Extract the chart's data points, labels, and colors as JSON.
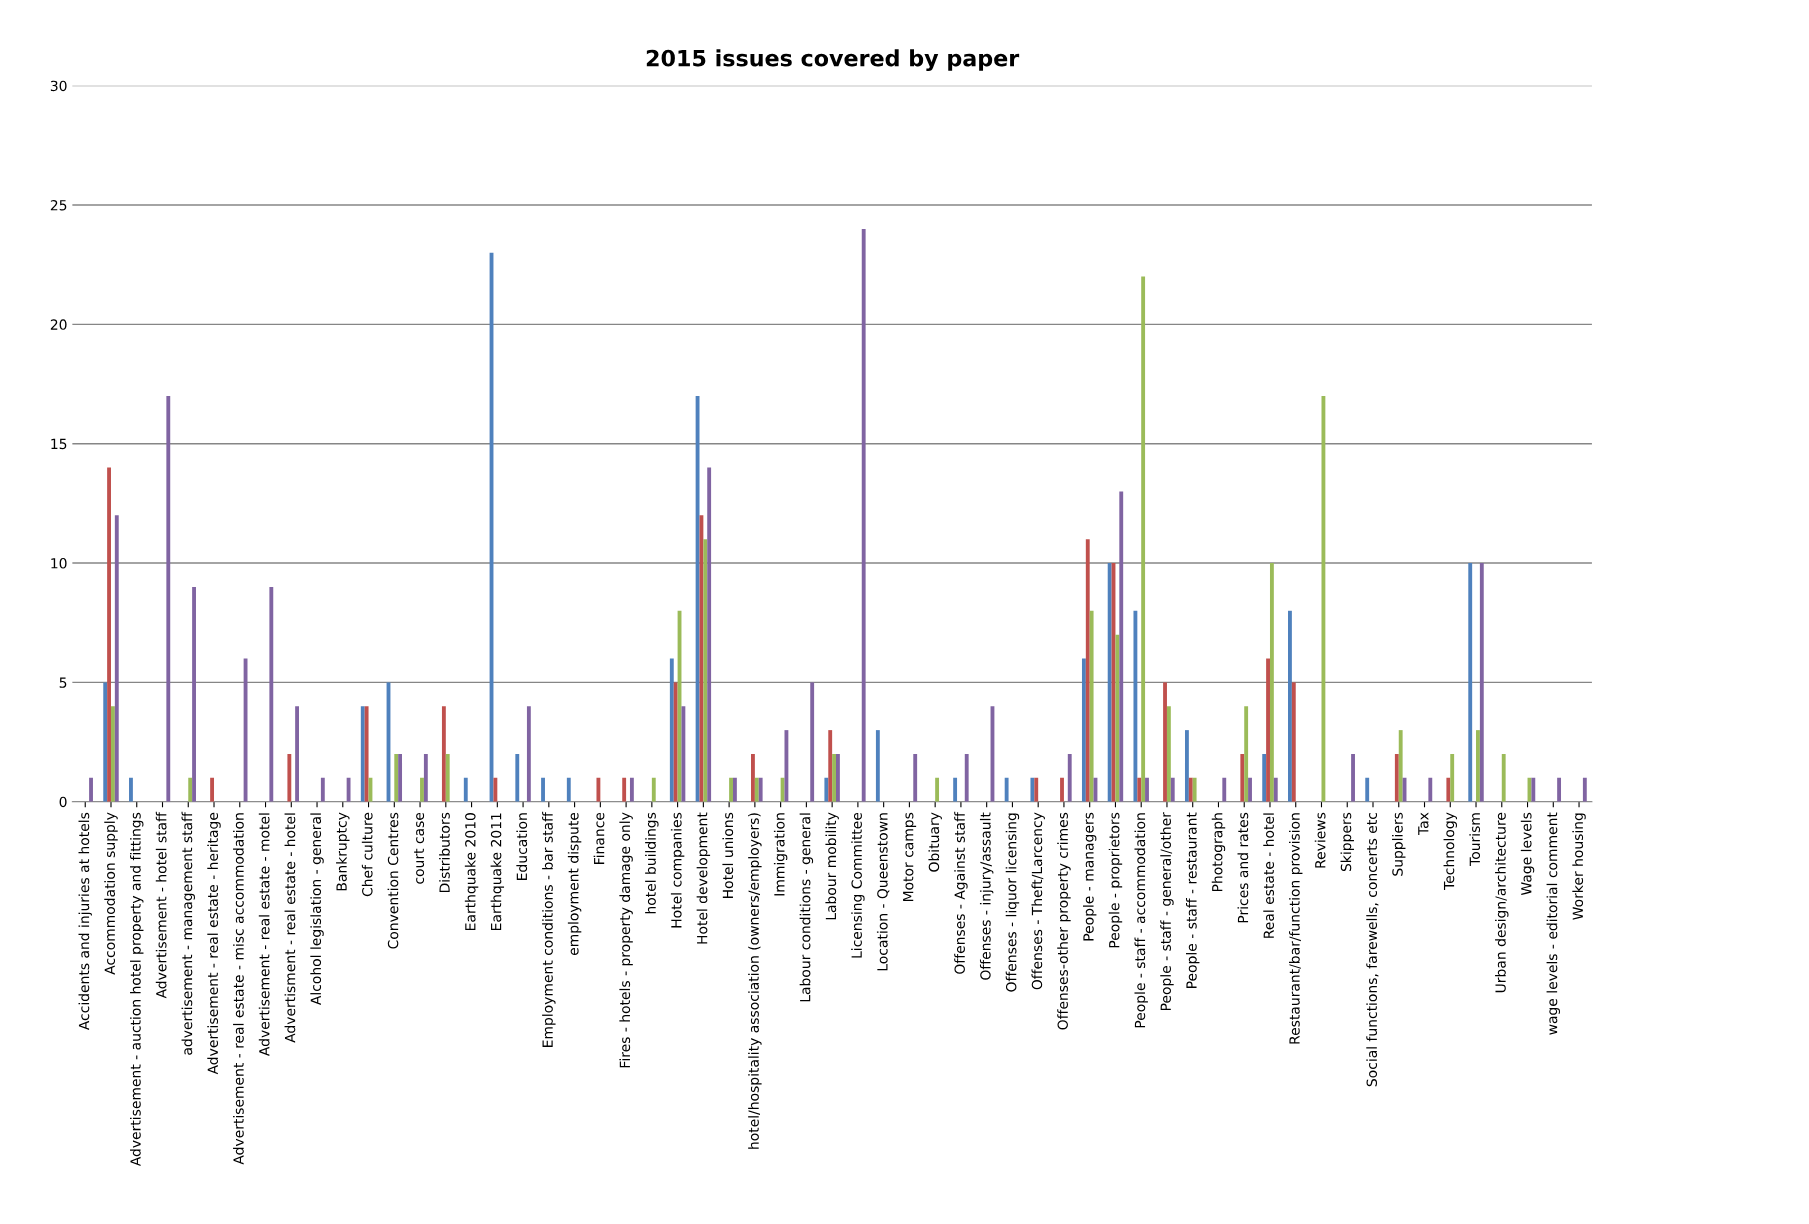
{
  "chart_data": {
    "type": "bar",
    "title": "2015 issues covered by paper",
    "categories": [
      "Accidents and injuries at hotels",
      "Accommodation supply",
      "Advertisement - auction hotel property and fittings",
      "Advertisement - hotel staff",
      "advertisement - management staff",
      "Advertisement - real estate - heritage",
      "Advertisement - real estate - misc accommodation",
      "Advertisement - real estate - motel",
      "Advertisment - real estate - hotel",
      "Alcohol legislation - general",
      "Bankruptcy",
      "Chef culture",
      "Convention Centres",
      "court case",
      "Distributors",
      "Earthquake 2010",
      "Earthquake 2011",
      "Education",
      "Employment conditions - bar staff",
      "employment dispute",
      "Finance",
      "Fires - hotels - property damage only",
      "hotel buildings",
      "Hotel companies",
      "Hotel development",
      "Hotel unions",
      "hotel/hospitality association (owners/employers)",
      "Immigration",
      "Labour conditions - general",
      "Labour mobility",
      "Licensing Committee",
      "Location - Queenstown",
      "Motor camps",
      "Obituary",
      "Offenses - Against staff",
      "Offenses - injury/assault",
      "Offenses - liquor licensing",
      "Offenses - Theft/Larcency",
      "Offenses-other property crimes",
      "People - managers",
      "People - proprietors",
      "People - staff - accommodation",
      "People - staff - general/other",
      "People - staff - restaurant",
      "Photograph",
      "Prices and rates",
      "Real estate - hotel",
      "Restaurant/bar/function provision",
      "Reviews",
      "Skippers",
      "Social functions, farewells, concerts etc",
      "Suppliers",
      "Tax",
      "Technology",
      "Tourism",
      "Urban design/architecture",
      "Wage levels",
      "wage levels - editorial comment",
      "Worker housing"
    ],
    "series": [
      {
        "color": "#4f81bd",
        "values": [
          0,
          5,
          1,
          0,
          0,
          0,
          0,
          0,
          0,
          0,
          0,
          4,
          5,
          0,
          0,
          1,
          23,
          2,
          1,
          1,
          0,
          0,
          0,
          6,
          17,
          0,
          0,
          0,
          0,
          1,
          0,
          3,
          0,
          0,
          1,
          0,
          1,
          1,
          0,
          6,
          10,
          8,
          0,
          3,
          0,
          0,
          2,
          8,
          0,
          0,
          1,
          0,
          0,
          0,
          10,
          0,
          0,
          0,
          0
        ]
      },
      {
        "color": "#c0504d",
        "values": [
          0,
          14,
          0,
          0,
          0,
          1,
          0,
          0,
          2,
          0,
          0,
          4,
          0,
          0,
          4,
          0,
          1,
          0,
          0,
          0,
          1,
          1,
          0,
          5,
          12,
          0,
          2,
          0,
          0,
          3,
          0,
          0,
          0,
          0,
          0,
          0,
          0,
          1,
          1,
          11,
          10,
          1,
          5,
          1,
          0,
          2,
          6,
          5,
          0,
          0,
          0,
          2,
          0,
          1,
          0,
          0,
          0,
          0,
          0
        ]
      },
      {
        "color": "#9bbb59",
        "values": [
          0,
          4,
          0,
          0,
          1,
          0,
          0,
          0,
          0,
          0,
          0,
          1,
          2,
          1,
          2,
          0,
          0,
          0,
          0,
          0,
          0,
          0,
          1,
          8,
          11,
          1,
          1,
          1,
          0,
          2,
          0,
          0,
          0,
          1,
          0,
          0,
          0,
          0,
          0,
          8,
          7,
          22,
          4,
          1,
          0,
          4,
          10,
          0,
          17,
          0,
          0,
          3,
          0,
          2,
          3,
          2,
          1,
          0,
          0
        ]
      },
      {
        "color": "#8064a2",
        "values": [
          1,
          12,
          0,
          17,
          9,
          0,
          6,
          9,
          4,
          1,
          1,
          0,
          2,
          2,
          0,
          0,
          0,
          4,
          0,
          0,
          0,
          1,
          0,
          4,
          14,
          1,
          1,
          3,
          5,
          2,
          24,
          0,
          2,
          0,
          2,
          4,
          0,
          0,
          2,
          1,
          13,
          1,
          1,
          0,
          1,
          1,
          1,
          0,
          0,
          2,
          0,
          1,
          1,
          0,
          10,
          0,
          1,
          1,
          1
        ]
      }
    ],
    "ylim": [
      0,
      30
    ],
    "yticks": [
      0,
      5,
      10,
      15,
      20,
      25,
      30
    ],
    "grid": "y"
  }
}
